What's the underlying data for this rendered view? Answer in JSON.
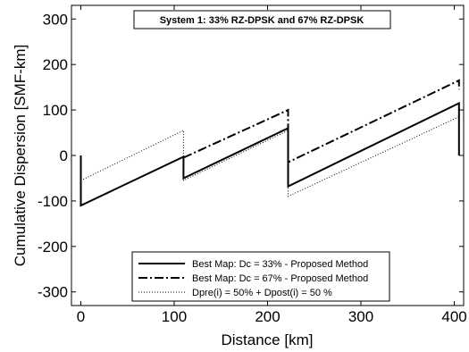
{
  "chart_data": {
    "type": "line",
    "title": "System 1: 33% RZ-DPSK and 67% RZ-DPSK",
    "xlabel": "Distance [km]",
    "ylabel": "Cumulative Dispersion [SMF-km]",
    "xlim": [
      -10,
      410
    ],
    "ylim": [
      -330,
      330
    ],
    "x_ticks": [
      0,
      100,
      200,
      300,
      400
    ],
    "y_ticks": [
      -300,
      -200,
      -100,
      0,
      100,
      200,
      300
    ],
    "x_tick_labels": [
      "0",
      "100",
      "200",
      "300",
      "400"
    ],
    "y_tick_labels": [
      "-300",
      "-200",
      "-100",
      "0",
      "100",
      "200",
      "300"
    ],
    "grid": false,
    "legend_position": "bottom-center",
    "series": [
      {
        "name": "Best Map: Dc = 33% - Proposed Method",
        "style": "solid",
        "x": [
          0,
          0,
          110,
          110,
          222,
          222,
          405,
          405
        ],
        "y": [
          0,
          -110,
          -3,
          -50,
          60,
          -68,
          115,
          0
        ]
      },
      {
        "name": "Best Map: Dc = 67% - Proposed Method",
        "style": "dashdot",
        "x": [
          110,
          222,
          222,
          405,
          405
        ],
        "y": [
          -5,
          100,
          -15,
          165,
          145
        ]
      },
      {
        "name": "Dpre(i) = 50% + Dpost(i) = 50 %",
        "style": "dotted",
        "x": [
          0,
          110,
          110,
          222,
          222,
          405
        ],
        "y": [
          -55,
          55,
          -55,
          55,
          -90,
          85
        ]
      }
    ]
  }
}
